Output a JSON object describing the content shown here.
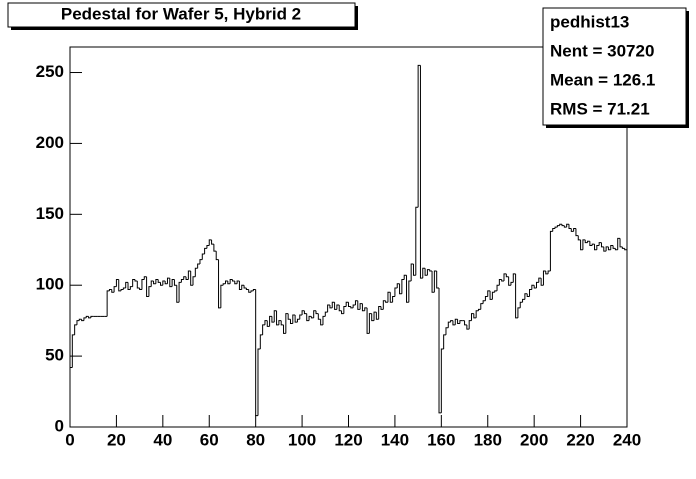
{
  "chart_data": {
    "type": "histogram",
    "title": "Pedestal for Wafer 5, Hybrid 2",
    "stats": [
      "pedhist13",
      "Nent = 30720",
      "Mean  =  126.1",
      "RMS   =  71.21"
    ],
    "color": "#000000",
    "bins": [
      0,
      1,
      2,
      3,
      4,
      5,
      6,
      7,
      8,
      9,
      10,
      11,
      12,
      13,
      14,
      15,
      16,
      17,
      18,
      19,
      20,
      21,
      22,
      23,
      24,
      25,
      26,
      27,
      28,
      29,
      30,
      31,
      32,
      33,
      34,
      35,
      36,
      37,
      38,
      39,
      40,
      41,
      42,
      43,
      44,
      45,
      46,
      47,
      48,
      49,
      50,
      51,
      52,
      53,
      54,
      55,
      56,
      57,
      58,
      59,
      60,
      61,
      62,
      63,
      64,
      65,
      66,
      67,
      68,
      69,
      70,
      71,
      72,
      73,
      74,
      75,
      76,
      77,
      78,
      79,
      80,
      81,
      82,
      83,
      84,
      85,
      86,
      87,
      88,
      89,
      90,
      91,
      92,
      93,
      94,
      95,
      96,
      97,
      98,
      99,
      100,
      101,
      102,
      103,
      104,
      105,
      106,
      107,
      108,
      109,
      110,
      111,
      112,
      113,
      114,
      115,
      116,
      117,
      118,
      119,
      120,
      121,
      122,
      123,
      124,
      125,
      126,
      127,
      128,
      129,
      130,
      131,
      132,
      133,
      134,
      135,
      136,
      137,
      138,
      139,
      140,
      141,
      142,
      143,
      144,
      145,
      146,
      147,
      148,
      149,
      150,
      151,
      152,
      153,
      154,
      155,
      156,
      157,
      158,
      159,
      160,
      161,
      162,
      163,
      164,
      165,
      166,
      167,
      168,
      169,
      170,
      171,
      172,
      173,
      174,
      175,
      176,
      177,
      178,
      179,
      180,
      181,
      182,
      183,
      184,
      185,
      186,
      187,
      188,
      189,
      190,
      191,
      192,
      193,
      194,
      195,
      196,
      197,
      198,
      199,
      200,
      201,
      202,
      203,
      204,
      205,
      206,
      207,
      208,
      209,
      210,
      211,
      212,
      213,
      214,
      215,
      216,
      217,
      218,
      219,
      220,
      221,
      222,
      223,
      224,
      225,
      226,
      227,
      228,
      229,
      230,
      231,
      232,
      233,
      234,
      235,
      236,
      237,
      238,
      239,
      240
    ],
    "values": [
      42,
      65,
      72,
      75,
      76,
      75,
      77,
      78,
      77,
      78,
      78,
      78,
      78,
      78,
      78,
      78,
      96,
      97,
      95,
      99,
      104,
      96,
      97,
      98,
      102,
      97,
      99,
      104,
      103,
      98,
      97,
      104,
      106,
      92,
      99,
      103,
      101,
      104,
      102,
      100,
      103,
      101,
      105,
      99,
      104,
      100,
      88,
      102,
      104,
      106,
      104,
      110,
      100,
      106,
      112,
      115,
      118,
      122,
      126,
      128,
      132,
      129,
      124,
      118,
      84,
      100,
      101,
      103,
      101,
      104,
      103,
      101,
      103,
      97,
      100,
      98,
      97,
      95,
      96,
      97,
      8,
      55,
      65,
      72,
      75,
      71,
      78,
      74,
      82,
      72,
      75,
      72,
      66,
      80,
      76,
      73,
      79,
      74,
      76,
      79,
      82,
      80,
      75,
      78,
      77,
      82,
      80,
      76,
      72,
      78,
      81,
      86,
      84,
      88,
      83,
      86,
      82,
      80,
      85,
      88,
      85,
      84,
      86,
      89,
      83,
      87,
      82,
      84,
      66,
      80,
      75,
      81,
      76,
      85,
      83,
      89,
      88,
      95,
      88,
      92,
      98,
      101,
      94,
      104,
      107,
      88,
      103,
      115,
      107,
      155,
      255,
      105,
      112,
      107,
      111,
      110,
      95,
      110,
      98,
      10,
      55,
      65,
      70,
      74,
      75,
      72,
      76,
      73,
      75,
      75,
      72,
      69,
      75,
      80,
      77,
      82,
      83,
      87,
      89,
      92,
      96,
      90,
      95,
      96,
      100,
      104,
      103,
      108,
      106,
      100,
      102,
      108,
      77,
      84,
      88,
      90,
      94,
      92,
      97,
      100,
      98,
      102,
      105,
      100,
      110,
      108,
      110,
      138,
      140,
      141,
      142,
      143,
      142,
      141,
      143,
      140,
      138,
      140,
      135,
      132,
      125,
      132,
      130,
      131,
      128,
      129,
      125,
      128,
      130,
      127,
      124,
      127,
      125,
      128,
      126,
      125,
      133,
      127,
      126,
      125
    ],
    "xlim": [
      0,
      240
    ],
    "xticks": [
      0,
      20,
      40,
      60,
      80,
      100,
      120,
      140,
      160,
      180,
      200,
      220,
      240
    ],
    "ylim": [
      0,
      268
    ],
    "yticks": [
      0,
      50,
      100,
      150,
      200,
      250
    ]
  }
}
